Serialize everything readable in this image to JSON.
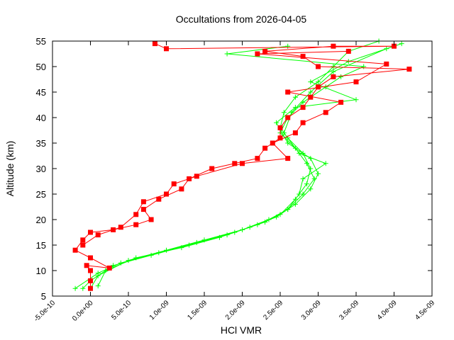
{
  "chart_data": {
    "type": "line",
    "title": "Occultations from 2026-04-05",
    "xlabel": "HCl VMR",
    "ylabel": "Altitude (km)",
    "xlim": [
      -5e-10,
      4.5e-09
    ],
    "ylim": [
      5,
      55
    ],
    "xticks": [
      -5e-10,
      0,
      5e-10,
      1e-09,
      1.5e-09,
      2e-09,
      2.5e-09,
      3e-09,
      3.5e-09,
      4e-09,
      4.5e-09
    ],
    "xtick_labels": [
      "-5.0e-10",
      "0.0e+00",
      "5.0e-10",
      "1.0e-09",
      "1.5e-09",
      "2.0e-09",
      "2.5e-09",
      "3.0e-09",
      "3.5e-09",
      "4.0e-09",
      "4.5e-09"
    ],
    "yticks": [
      5,
      10,
      15,
      20,
      25,
      30,
      35,
      40,
      45,
      50,
      55
    ],
    "ytick_labels": [
      "5",
      "10",
      "15",
      "20",
      "25",
      "30",
      "35",
      "40",
      "45",
      "50",
      "55"
    ],
    "grid": false,
    "series": [
      {
        "color": "#00ff00",
        "marker": "plus",
        "x": [
          -1e-10,
          0,
          3e-10,
          8e-10,
          1.3e-09,
          1.8e-09,
          2.2e-09,
          2.5e-09,
          2.7e-09,
          2.85e-09,
          2.9e-09,
          2.8e-09,
          2.6e-09,
          2.5e-09,
          2.55e-09,
          2.7e-09,
          3e-09,
          3.2e-09,
          3.4e-09,
          3.8e-09
        ],
        "y": [
          6.5,
          8,
          11,
          13,
          15,
          17,
          19,
          21,
          24,
          27,
          30,
          33,
          36,
          38,
          41,
          44,
          47,
          50,
          53,
          55
        ]
      },
      {
        "color": "#00ff00",
        "marker": "plus",
        "x": [
          0,
          1e-10,
          5e-10,
          1e-09,
          1.5e-09,
          2e-09,
          2.35e-09,
          2.6e-09,
          2.8e-09,
          2.95e-09,
          2.85e-09,
          2.7e-09,
          2.5e-09,
          2.6e-09,
          2.8e-09,
          3.1e-09,
          3.3e-09,
          3.6e-09,
          1.8e-09,
          2.6e-09
        ],
        "y": [
          6.5,
          9,
          12,
          14,
          16,
          18,
          20,
          22,
          25,
          28,
          31,
          34,
          37,
          40,
          43,
          46,
          48,
          50,
          52.5,
          54
        ]
      },
      {
        "color": "#00ff00",
        "marker": "plus",
        "x": [
          1e-10,
          2e-10,
          6e-10,
          1.2e-09,
          1.7e-09,
          2.1e-09,
          2.45e-09,
          2.7e-09,
          2.9e-09,
          3e-09,
          2.9e-09,
          2.6e-09,
          2.45e-09,
          2.7e-09,
          3.5e-09,
          2.9e-09,
          3.4e-09,
          4.1e-09
        ],
        "y": [
          7,
          10,
          12.5,
          14.5,
          16.5,
          18.5,
          20.5,
          23,
          26,
          29,
          32,
          35,
          39,
          42,
          43.5,
          47,
          51,
          54.5
        ]
      },
      {
        "color": "#00ff00",
        "marker": "plus",
        "x": [
          -2e-10,
          1e-10,
          4e-10,
          9e-10,
          1.4e-09,
          1.9e-09,
          2.3e-09,
          2.6e-09,
          2.75e-09,
          2.8e-09,
          3.1e-09,
          2.75e-09,
          2.55e-09,
          2.65e-09,
          2.9e-09,
          3.2e-09,
          3.9e-09
        ],
        "y": [
          6.5,
          9.5,
          11.5,
          13.5,
          15.5,
          17.5,
          19.5,
          22,
          25,
          28,
          31,
          33,
          37,
          41,
          45,
          49,
          53.5
        ]
      },
      {
        "color": "#ff0000",
        "marker": "square",
        "x": [
          0,
          0,
          0,
          -5e-11,
          2.5e-10,
          0,
          -2e-10,
          -1e-10,
          0,
          3e-10,
          6e-10,
          8e-10,
          7e-10,
          9e-10,
          1.2e-09,
          1.3e-09,
          1.6e-09,
          1.9e-09,
          2.2e-09,
          2.3e-09,
          2.5e-09,
          2.5e-09,
          2.6e-09,
          2.8e-09,
          2.9e-09,
          3e-09,
          3.2e-09,
          4.2e-09,
          3e-09,
          2.8e-09,
          2.3e-09,
          3.2e-09,
          4e-09,
          1e-09,
          8.5e-10
        ],
        "y": [
          6.5,
          8,
          10,
          11,
          10.5,
          12.5,
          14,
          16,
          17.5,
          18,
          19,
          20,
          22,
          24,
          26,
          28,
          30,
          31,
          32,
          34,
          36,
          38,
          40,
          42,
          44,
          46,
          48,
          49.5,
          50,
          52,
          53,
          54,
          54,
          53.5,
          54.5
        ]
      },
      {
        "color": "#ff0000",
        "marker": "square",
        "x": [
          -1e-10,
          1e-10,
          4e-10,
          6e-10,
          7e-10,
          1e-09,
          1.1e-09,
          1.4e-09,
          2e-09,
          2.6e-09,
          2.4e-09,
          2.7e-09,
          2.8e-09,
          3.1e-09,
          3.3e-09,
          2.6e-09,
          3.5e-09,
          3.9e-09,
          2.2e-09,
          3.4e-09
        ],
        "y": [
          15,
          17,
          18.5,
          21,
          23.5,
          25,
          27,
          28.5,
          31,
          32,
          35,
          37,
          39,
          41,
          43,
          45,
          47,
          50.5,
          52.5,
          53
        ]
      }
    ]
  }
}
